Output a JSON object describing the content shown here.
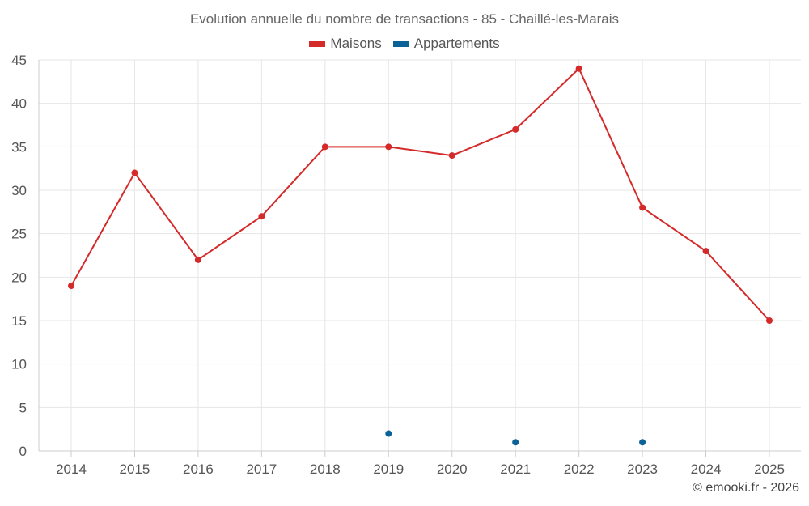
{
  "chart_data": {
    "type": "line",
    "title": "Evolution annuelle du nombre de transactions - 85 - Chaillé-les-Marais",
    "categories": [
      "2014",
      "2015",
      "2016",
      "2017",
      "2018",
      "2019",
      "2020",
      "2021",
      "2022",
      "2023",
      "2024",
      "2025"
    ],
    "ylim": [
      0,
      45
    ],
    "yticks": [
      0,
      5,
      10,
      15,
      20,
      25,
      30,
      35,
      40,
      45
    ],
    "grid": true,
    "legend_position": "top-center",
    "series": [
      {
        "name": "Maisons",
        "color": "#d42a2a",
        "values": [
          19,
          32,
          22,
          27,
          35,
          35,
          34,
          37,
          44,
          28,
          23,
          15
        ]
      },
      {
        "name": "Appartements",
        "color": "#0a6296",
        "values": [
          null,
          null,
          null,
          null,
          null,
          2,
          null,
          1,
          null,
          1,
          null,
          null
        ]
      }
    ]
  },
  "credit": "© emooki.fr - 2026"
}
